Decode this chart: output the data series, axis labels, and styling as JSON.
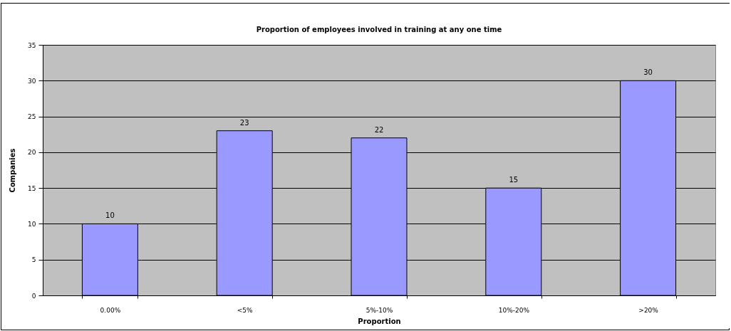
{
  "chart_data": {
    "type": "bar",
    "title": "Proportion of employees involved in training at any one time",
    "xlabel": "Proportion",
    "ylabel": "Companies",
    "categories": [
      "0.00%",
      "<5%",
      "5%-10%",
      "10%-20%",
      ">20%"
    ],
    "values": [
      10,
      23,
      22,
      15,
      30
    ],
    "color": "#9999ff",
    "ylim": [
      0,
      35
    ],
    "yticks": [
      0,
      5,
      10,
      15,
      20,
      25,
      30,
      35
    ],
    "grid": "y",
    "data_labels": true
  }
}
